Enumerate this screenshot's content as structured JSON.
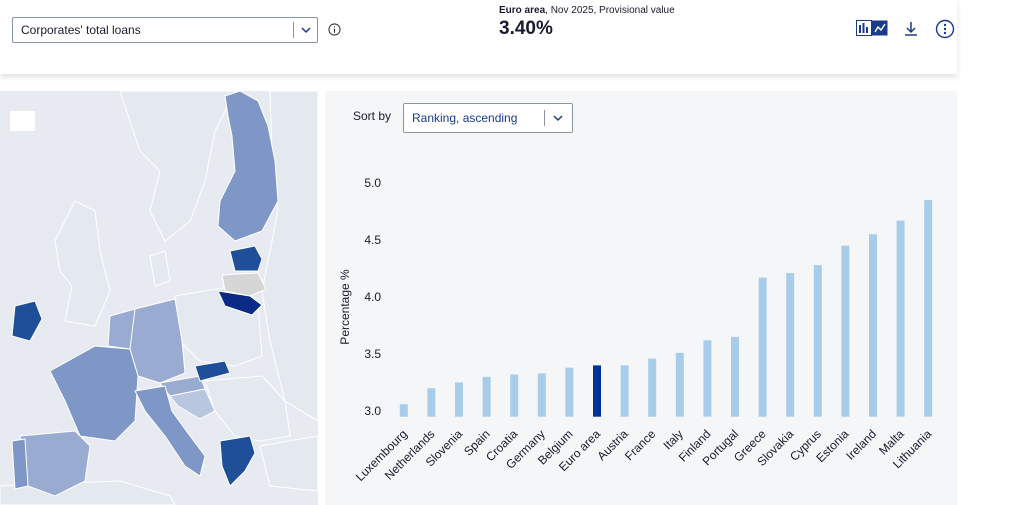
{
  "header": {
    "indicator_select": {
      "label": "Corporates' total loans"
    },
    "kpi": {
      "region": "Euro area",
      "detail": ", Nov 2025, Provisional value",
      "value": "3.40%"
    },
    "icons": [
      "info-icon",
      "bar-chart-icon",
      "line-chart-icon",
      "download-icon",
      "more-options-icon"
    ]
  },
  "sort": {
    "label": "Sort by",
    "selected": "Ranking, ascending"
  },
  "colors": {
    "bar": "#a8cdea",
    "bar_highlight": "#003299",
    "map_land": "#e4e8ef",
    "map_sea": "#e7ebf1",
    "map_light": "#9aabd2",
    "map_mid": "#7f97c7",
    "map_dark": "#1f4f99",
    "map_darkest": "#0a2a85",
    "map_nodata": "#d6d6d6"
  },
  "chart_data": {
    "type": "bar",
    "ylabel": "Percentage %",
    "ylim": [
      2.95,
      5.0
    ],
    "yticks": [
      3.0,
      3.5,
      4.0,
      4.5,
      5.0
    ],
    "ytick_labels": [
      "3.0",
      "3.5",
      "4.0",
      "4.5",
      "5.0"
    ],
    "highlight": "Euro area",
    "categories": [
      "Luxembourg",
      "Netherlands",
      "Slovenia",
      "Spain",
      "Croatia",
      "Germany",
      "Belgium",
      "Euro area",
      "Austria",
      "France",
      "Italy",
      "Finland",
      "Portugal",
      "Greece",
      "Slovakia",
      "Cyprus",
      "Estonia",
      "Ireland",
      "Malta",
      "Lithuania"
    ],
    "values": [
      3.06,
      3.2,
      3.25,
      3.3,
      3.32,
      3.33,
      3.38,
      3.4,
      3.4,
      3.46,
      3.51,
      3.62,
      3.65,
      4.17,
      4.21,
      4.28,
      4.45,
      4.55,
      4.67,
      4.85
    ]
  }
}
